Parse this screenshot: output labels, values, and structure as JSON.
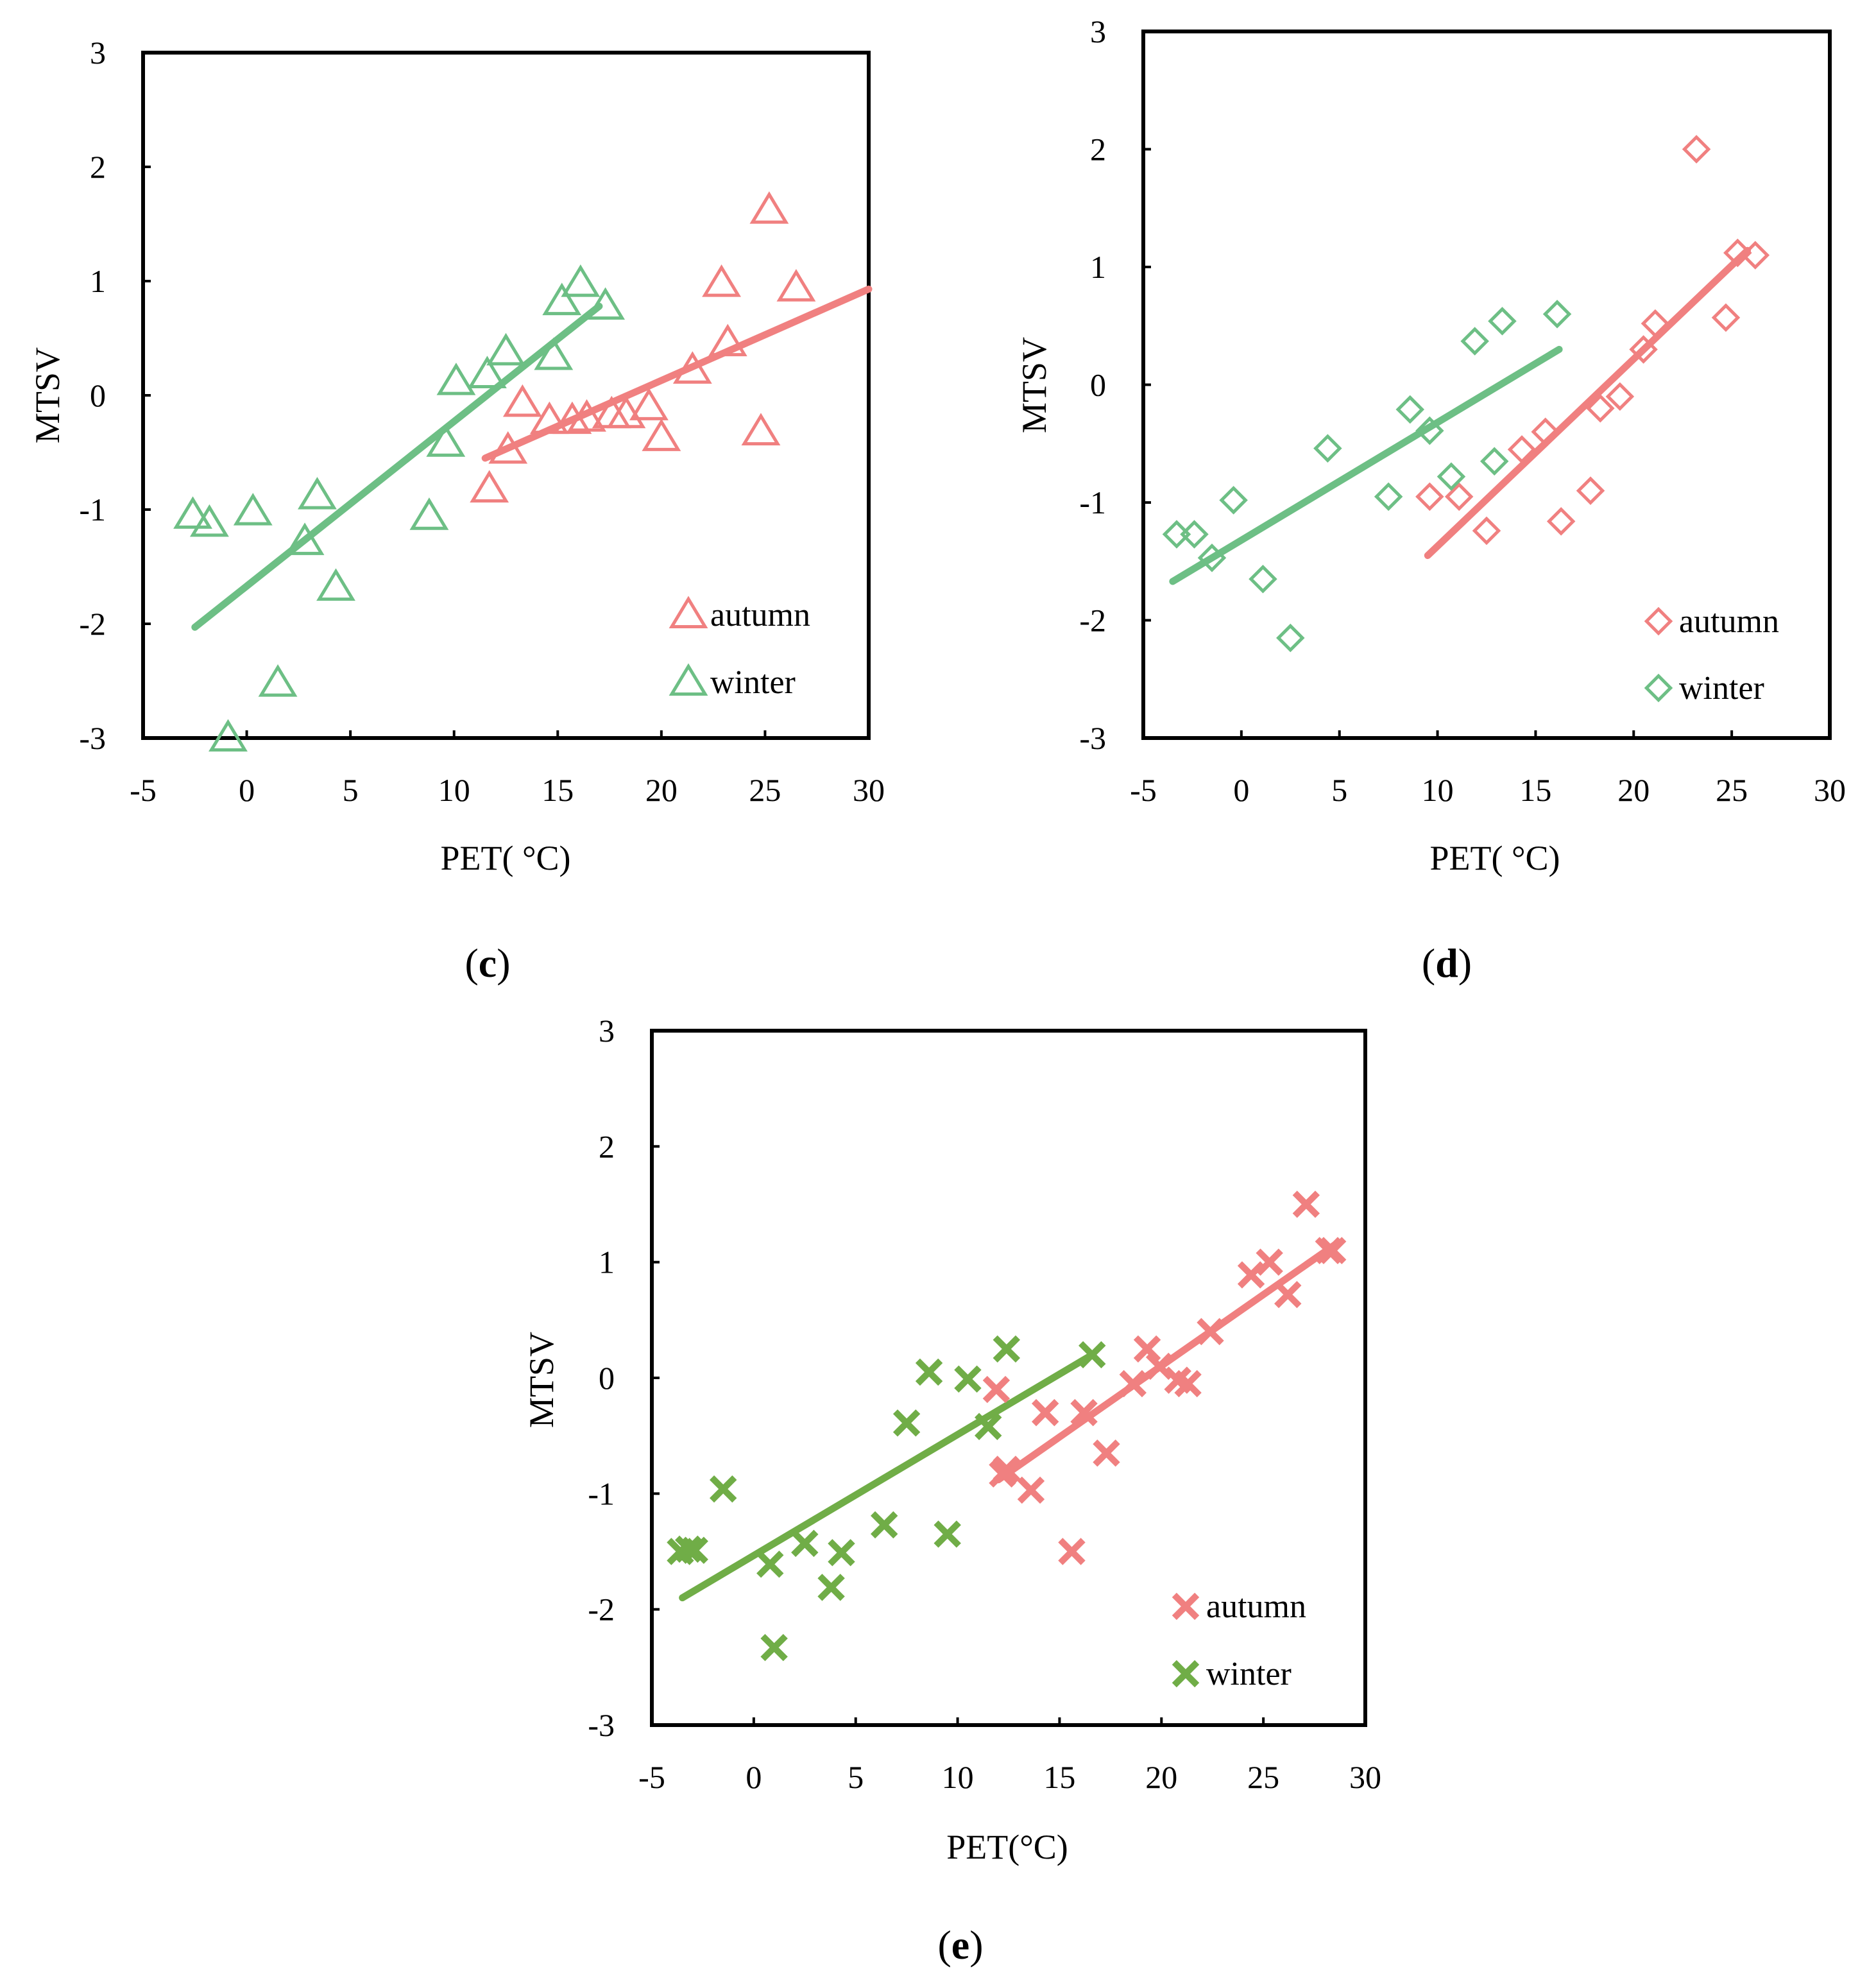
{
  "figure": {
    "colors": {
      "autumn": "#f08080",
      "winter_light": "#6dbf85",
      "winter_dark": "#70ad47",
      "axis": "#000000"
    },
    "panels": [
      {
        "id": "c",
        "label_open": "(",
        "label_letter": "c",
        "label_close": ")",
        "marker": "triangle",
        "winter_color_key": "winter_light",
        "legend": [
          "autumn",
          "winter"
        ]
      },
      {
        "id": "d",
        "label_open": "(",
        "label_letter": "d",
        "label_close": ")",
        "marker": "diamond",
        "winter_color_key": "winter_light",
        "legend": [
          "autumn",
          "winter"
        ]
      },
      {
        "id": "e",
        "label_open": "(",
        "label_letter": "e",
        "label_close": ")",
        "marker": "cross",
        "winter_color_key": "winter_dark",
        "legend": [
          "autumn",
          "winter"
        ]
      }
    ]
  },
  "chart_data": [
    {
      "type": "scatter",
      "title": "(c)",
      "xlabel": "PET( °C)",
      "ylabel": "MTSV",
      "xlim": [
        -5,
        30
      ],
      "ylim": [
        -3,
        3
      ],
      "xticks": [
        -5,
        0,
        5,
        10,
        15,
        20,
        25,
        30
      ],
      "yticks": [
        -3,
        -2,
        -1,
        0,
        1,
        2,
        3
      ],
      "grid": false,
      "legend_position": "bottom-right",
      "series": [
        {
          "name": "autumn",
          "x": [
            11.7,
            12.6,
            13.3,
            14.6,
            15.7,
            16.4,
            17.6,
            18.3,
            19.4,
            20.0,
            21.5,
            22.9,
            23.2,
            24.8,
            25.2,
            26.5
          ],
          "y": [
            -0.82,
            -0.48,
            -0.07,
            -0.22,
            -0.22,
            -0.2,
            -0.17,
            -0.17,
            -0.1,
            -0.37,
            0.22,
            0.98,
            0.46,
            -0.32,
            1.62,
            0.94
          ],
          "trend": {
            "x": [
              11.5,
              30.0
            ],
            "y": [
              -0.55,
              0.93
            ]
          }
        },
        {
          "name": "winter",
          "x": [
            -2.6,
            -1.8,
            0.3,
            -0.9,
            1.5,
            2.8,
            3.4,
            4.3,
            8.8,
            9.6,
            10.1,
            11.6,
            12.5,
            14.8,
            15.2,
            16.1,
            17.3
          ],
          "y": [
            -1.05,
            -1.12,
            -1.02,
            -3.0,
            -2.52,
            -1.28,
            -0.88,
            -1.68,
            -1.06,
            -0.42,
            0.12,
            0.18,
            0.38,
            0.34,
            0.82,
            0.98,
            0.78
          ],
          "trend": {
            "x": [
              -2.5,
              17.0
            ],
            "y": [
              -2.03,
              0.78
            ]
          }
        }
      ]
    },
    {
      "type": "scatter",
      "title": "(d)",
      "xlabel": "PET( °C)",
      "ylabel": "MTSV",
      "xlim": [
        -5,
        30
      ],
      "ylim": [
        -3,
        3
      ],
      "xticks": [
        -5,
        0,
        5,
        10,
        15,
        20,
        25,
        30
      ],
      "yticks": [
        -3,
        -2,
        -1,
        0,
        1,
        2,
        3
      ],
      "grid": false,
      "legend_position": "bottom-right",
      "series": [
        {
          "name": "autumn",
          "x": [
            9.6,
            11.1,
            12.5,
            14.3,
            15.5,
            16.3,
            17.8,
            18.3,
            19.3,
            20.5,
            21.1,
            23.2,
            24.7,
            25.3,
            26.2
          ],
          "y": [
            -0.95,
            -0.95,
            -1.24,
            -0.55,
            -0.4,
            -1.16,
            -0.9,
            -0.2,
            -0.1,
            0.3,
            0.52,
            2.0,
            0.57,
            1.12,
            1.1
          ],
          "trend": {
            "x": [
              9.5,
              25.8
            ],
            "y": [
              -1.45,
              1.14
            ]
          }
        },
        {
          "name": "winter",
          "x": [
            -3.3,
            -2.4,
            -1.5,
            -0.4,
            1.1,
            2.5,
            4.4,
            7.5,
            8.6,
            9.6,
            10.7,
            11.9,
            12.9,
            13.3,
            16.1
          ],
          "y": [
            -1.27,
            -1.27,
            -1.47,
            -0.98,
            -1.65,
            -2.15,
            -0.54,
            -0.95,
            -0.21,
            -0.39,
            -0.78,
            0.37,
            -0.65,
            0.54,
            0.6
          ],
          "trend": {
            "x": [
              -3.5,
              16.2
            ],
            "y": [
              -1.67,
              0.3
            ]
          }
        }
      ]
    },
    {
      "type": "scatter",
      "title": "(e)",
      "xlabel": "PET(°C)",
      "ylabel": "MTSV",
      "xlim": [
        -5,
        30
      ],
      "ylim": [
        -3,
        3
      ],
      "xticks": [
        -5,
        0,
        5,
        10,
        15,
        20,
        25,
        30
      ],
      "yticks": [
        -3,
        -2,
        -1,
        0,
        1,
        2,
        3
      ],
      "grid": false,
      "legend_position": "bottom-right",
      "series": [
        {
          "name": "autumn",
          "x": [
            11.9,
            12.2,
            12.4,
            13.6,
            14.3,
            15.6,
            16.2,
            17.3,
            18.6,
            19.3,
            19.9,
            20.8,
            21.3,
            22.4,
            24.4,
            25.3,
            26.2,
            27.1,
            28.2,
            28.4
          ],
          "y": [
            -0.1,
            -0.83,
            -0.79,
            -0.97,
            -0.3,
            -1.5,
            -0.3,
            -0.65,
            -0.05,
            0.25,
            0.1,
            -0.02,
            -0.05,
            0.4,
            0.89,
            1.0,
            0.72,
            1.5,
            1.1,
            1.1
          ],
          "trend": {
            "x": [
              12.0,
              28.5
            ],
            "y": [
              -0.88,
              1.15
            ]
          }
        },
        {
          "name": "winter",
          "x": [
            -3.6,
            -3.2,
            -2.9,
            -1.5,
            0.8,
            1.0,
            2.5,
            3.8,
            4.3,
            6.4,
            7.5,
            8.6,
            9.5,
            10.5,
            11.5,
            12.4,
            16.6
          ],
          "y": [
            -1.5,
            -1.48,
            -1.49,
            -0.96,
            -1.61,
            -2.33,
            -1.43,
            -1.81,
            -1.51,
            -1.27,
            -0.39,
            0.05,
            -1.35,
            -0.01,
            -0.42,
            0.25,
            0.2
          ],
          "trend": {
            "x": [
              -3.5,
              16.6
            ],
            "y": [
              -1.9,
              0.2
            ]
          }
        }
      ]
    }
  ]
}
